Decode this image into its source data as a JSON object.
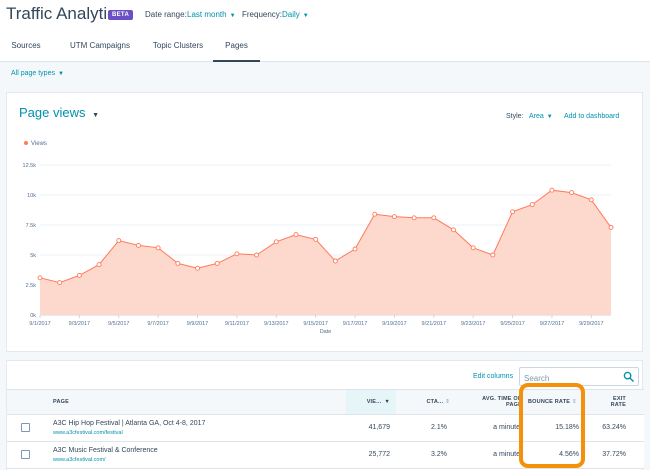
{
  "header": {
    "title": "Traffic Analytics",
    "badge": "BETA",
    "date_range_label": "Date range:",
    "date_range_value": "Last month",
    "frequency_label": "Frequency:",
    "frequency_value": "Daily"
  },
  "tabs": [
    {
      "label": "Sources"
    },
    {
      "label": "UTM Campaigns"
    },
    {
      "label": "Topic Clusters"
    },
    {
      "label": "Pages",
      "active": true
    }
  ],
  "filter": {
    "label": "All page types"
  },
  "chart_panel": {
    "title": "Page views",
    "style_label": "Style:",
    "style_value": "Area",
    "add_to_dashboard": "Add to dashboard"
  },
  "chart_data": {
    "type": "area",
    "legend": [
      "Views"
    ],
    "legend_position": "top-left",
    "xlabel": "Date",
    "ylabel": "",
    "ylim": [
      0,
      12500
    ],
    "y_ticks": [
      "0k",
      "2.5k",
      "5k",
      "7.5k",
      "10k",
      "12.5k"
    ],
    "x_tick_labels": [
      "9/1/2017",
      "9/3/2017",
      "9/5/2017",
      "9/7/2017",
      "9/9/2017",
      "9/11/2017",
      "9/13/2017",
      "9/15/2017",
      "9/17/2017",
      "9/19/2017",
      "9/21/2017",
      "9/23/2017",
      "9/25/2017",
      "9/27/2017",
      "9/29/2017"
    ],
    "grid": true,
    "color": "#ff7a59",
    "fill": "#fdd8cc",
    "series": [
      {
        "name": "Views",
        "x": [
          "9/1/2017",
          "9/2/2017",
          "9/3/2017",
          "9/4/2017",
          "9/5/2017",
          "9/6/2017",
          "9/7/2017",
          "9/8/2017",
          "9/9/2017",
          "9/10/2017",
          "9/11/2017",
          "9/12/2017",
          "9/13/2017",
          "9/14/2017",
          "9/15/2017",
          "9/16/2017",
          "9/17/2017",
          "9/18/2017",
          "9/19/2017",
          "9/20/2017",
          "9/21/2017",
          "9/22/2017",
          "9/23/2017",
          "9/24/2017",
          "9/25/2017",
          "9/26/2017",
          "9/27/2017",
          "9/28/2017",
          "9/29/2017",
          "9/30/2017"
        ],
        "values": [
          3100,
          2700,
          3300,
          4200,
          6200,
          5800,
          5600,
          4300,
          3900,
          4300,
          5100,
          5000,
          6100,
          6700,
          6300,
          4500,
          5500,
          8400,
          8200,
          8100,
          8100,
          7100,
          5600,
          5000,
          8600,
          9200,
          10400,
          10200,
          9600,
          7300
        ]
      }
    ]
  },
  "table": {
    "edit_columns": "Edit columns",
    "search_placeholder": "Search",
    "headers": {
      "page": "PAGE",
      "views": "VIE...",
      "cta": "CTA...",
      "avg_time_1": "AVG. TIME ON",
      "avg_time_2": "PAGE",
      "bounce": "BOUNCE RATE",
      "exit_1": "EXIT",
      "exit_2": "RATE"
    },
    "rows": [
      {
        "name": "A3C Hip Hop Festival | Atlanta GA, Oct 4-8, 2017",
        "url": "www.a3cfestival.com/festival",
        "views": "41,679",
        "cta": "2.1%",
        "avg_time": "a minute",
        "bounce": "15.18%",
        "exit": "63.24%"
      },
      {
        "name": "A3C Music Festival & Conference",
        "url": "www.a3cfestival.com/",
        "views": "25,772",
        "cta": "3.2%",
        "avg_time": "a minute",
        "bounce": "4.56%",
        "exit": "37.72%"
      }
    ]
  },
  "highlight_color": "#f5900a"
}
